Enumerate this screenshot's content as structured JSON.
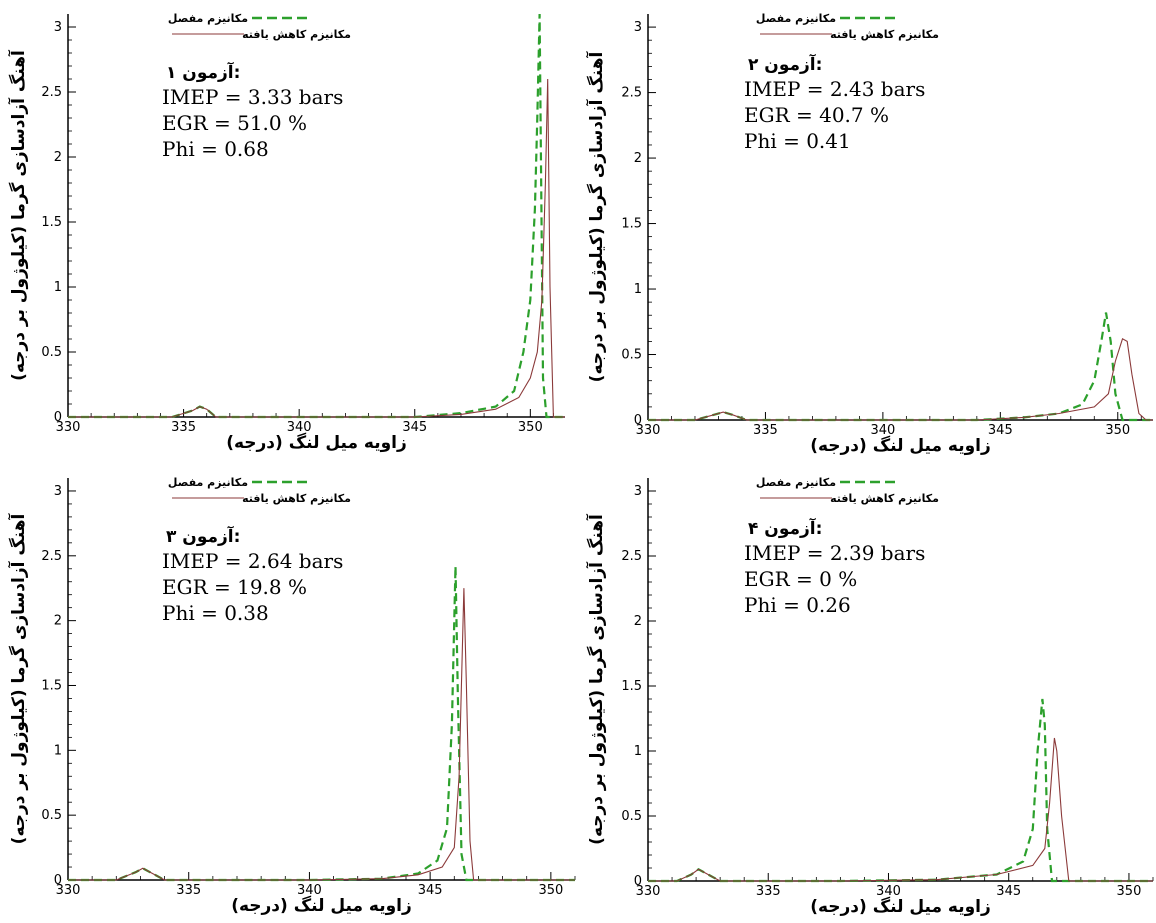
{
  "legend": {
    "detailed": "مکانیزم مفصل",
    "reduced": "مکانیزم کاهش یافته"
  },
  "colors": {
    "detailed": "#2ca02c",
    "reduced": "#8b3a3a"
  },
  "chart_data": [
    {
      "type": "line",
      "xlabel": "زاویه میل لنگ (درجه)",
      "ylabel": "آهنگ آزادسازی گرما (کیلوژول بر درجه)",
      "xlim": [
        330,
        351.5
      ],
      "ylim": [
        0,
        3.1
      ],
      "xticks": [
        330,
        335,
        340,
        345,
        350
      ],
      "yticks": [
        0,
        0.5,
        1,
        1.5,
        2,
        2.5,
        3
      ],
      "legend_position": "top",
      "annotation": [
        "آزمون ۱:",
        "IMEP = 3.33 bars",
        "EGR = 51.0 %",
        "Phi = 0.68"
      ],
      "series": [
        {
          "name": "مکانیزم مفصل",
          "style": "dashed",
          "x": [
            330,
            334.5,
            335.4,
            335.7,
            336,
            336.4,
            337,
            345,
            347,
            348.5,
            349.3,
            349.7,
            350.0,
            350.2,
            350.3,
            350.4,
            350.55,
            350.7,
            351.5
          ],
          "y": [
            0,
            0,
            0.05,
            0.08,
            0.06,
            0,
            0,
            0,
            0.03,
            0.08,
            0.2,
            0.5,
            0.9,
            1.6,
            2.3,
            3.1,
            0.3,
            0,
            0
          ]
        },
        {
          "name": "مکانیزم کاهش یافته",
          "style": "solid",
          "x": [
            330,
            334.5,
            335.4,
            335.7,
            336,
            336.4,
            337,
            345,
            347,
            348.5,
            349.5,
            350.0,
            350.3,
            350.5,
            350.65,
            350.75,
            350.85,
            351.0,
            351.5
          ],
          "y": [
            0,
            0,
            0.05,
            0.08,
            0.06,
            0,
            0,
            0,
            0.02,
            0.06,
            0.15,
            0.3,
            0.5,
            0.9,
            1.8,
            2.6,
            1.0,
            0,
            0
          ]
        }
      ]
    },
    {
      "type": "line",
      "xlabel": "زاویه میل لنگ (درجه)",
      "ylabel": "آهنگ آزادسازی گرما (کیلوژول بر درجه)",
      "xlim": [
        330,
        351.5
      ],
      "ylim": [
        0,
        3.1
      ],
      "xticks": [
        330,
        335,
        340,
        345,
        350
      ],
      "yticks": [
        0,
        0.5,
        1,
        1.5,
        2,
        2.5,
        3
      ],
      "legend_position": "top",
      "annotation": [
        "آزمون ۲:",
        "IMEP = 2.43 bars",
        "EGR = 40.7 %",
        "Phi = 0.41"
      ],
      "series": [
        {
          "name": "مکانیزم مفصل",
          "style": "dashed",
          "x": [
            330,
            332.0,
            332.8,
            333.2,
            333.6,
            334.2,
            344,
            346,
            347.5,
            348.5,
            349.0,
            349.3,
            349.5,
            349.7,
            349.9,
            350.2,
            351.5
          ],
          "y": [
            0,
            0,
            0.04,
            0.06,
            0.04,
            0,
            0,
            0.02,
            0.05,
            0.12,
            0.3,
            0.6,
            0.82,
            0.6,
            0.2,
            0,
            0
          ]
        },
        {
          "name": "مکانیزم کاهش یافته",
          "style": "solid",
          "x": [
            330,
            332.0,
            332.8,
            333.2,
            333.6,
            334.2,
            344,
            346,
            347.5,
            349.0,
            349.6,
            349.9,
            350.2,
            350.4,
            350.6,
            350.9,
            351.2,
            351.5
          ],
          "y": [
            0,
            0,
            0.04,
            0.06,
            0.04,
            0,
            0,
            0.02,
            0.05,
            0.1,
            0.2,
            0.45,
            0.62,
            0.6,
            0.35,
            0.05,
            0,
            0
          ]
        }
      ]
    },
    {
      "type": "line",
      "xlabel": "زاویه میل لنگ (درجه)",
      "ylabel": "آهنگ آزادسازی گرما (کیلوژول بر درجه)",
      "xlim": [
        330,
        351
      ],
      "ylim": [
        0,
        3.1
      ],
      "xticks": [
        330,
        335,
        340,
        345,
        350
      ],
      "yticks": [
        0,
        0.5,
        1,
        1.5,
        2,
        2.5,
        3
      ],
      "legend_position": "top",
      "annotation": [
        "آزمون ۳:",
        "IMEP = 2.64 bars",
        "EGR = 19.8 %",
        "Phi = 0.38"
      ],
      "series": [
        {
          "name": "مکانیزم مفصل",
          "style": "dashed",
          "x": [
            330,
            332.0,
            332.8,
            333.1,
            333.5,
            334.0,
            340,
            343,
            344.5,
            345.3,
            345.7,
            345.9,
            346.05,
            346.15,
            346.3,
            346.5,
            351
          ],
          "y": [
            0,
            0,
            0.06,
            0.09,
            0.05,
            0,
            0,
            0.01,
            0.05,
            0.15,
            0.4,
            1.2,
            2.42,
            1.4,
            0.2,
            0,
            0
          ]
        },
        {
          "name": "مکانیزم کاهش یافته",
          "style": "solid",
          "x": [
            330,
            332.0,
            332.8,
            333.1,
            333.5,
            334.0,
            340,
            343,
            344.5,
            345.5,
            346.0,
            346.2,
            346.4,
            346.5,
            346.65,
            346.8,
            351
          ],
          "y": [
            0,
            0,
            0.06,
            0.09,
            0.05,
            0,
            0,
            0.01,
            0.04,
            0.1,
            0.25,
            0.8,
            2.25,
            1.5,
            0.3,
            0,
            0
          ]
        }
      ]
    },
    {
      "type": "line",
      "xlabel": "زاویه میل لنگ (درجه)",
      "ylabel": "آهنگ آزادسازی گرما (کیلوژول بر درجه)",
      "xlim": [
        330,
        351
      ],
      "ylim": [
        0,
        3.1
      ],
      "xticks": [
        330,
        335,
        340,
        345,
        350
      ],
      "yticks": [
        0,
        0.5,
        1,
        1.5,
        2,
        2.5,
        3
      ],
      "legend_position": "top",
      "annotation": [
        "آزمون ۴:",
        "IMEP =  2.39 bars",
        "EGR = 0 %",
        "Phi = 0.26"
      ],
      "series": [
        {
          "name": "مکانیزم مفصل",
          "style": "dashed",
          "x": [
            330,
            331.2,
            331.8,
            332.1,
            332.5,
            333.0,
            338,
            342,
            344.5,
            345.6,
            346.0,
            346.2,
            346.4,
            346.5,
            346.6,
            346.8,
            351
          ],
          "y": [
            0,
            0,
            0.05,
            0.09,
            0.05,
            0,
            0,
            0.01,
            0.05,
            0.15,
            0.4,
            1.0,
            1.4,
            1.2,
            0.4,
            0,
            0
          ]
        },
        {
          "name": "مکانیزم کاهش یافته",
          "style": "solid",
          "x": [
            330,
            331.2,
            331.8,
            332.1,
            332.5,
            333.0,
            338,
            342,
            344.5,
            346.0,
            346.5,
            346.7,
            346.9,
            347.0,
            347.2,
            347.5,
            351
          ],
          "y": [
            0,
            0,
            0.05,
            0.09,
            0.05,
            0,
            0,
            0.01,
            0.05,
            0.12,
            0.25,
            0.6,
            1.1,
            1.0,
            0.5,
            0,
            0
          ]
        }
      ]
    }
  ]
}
